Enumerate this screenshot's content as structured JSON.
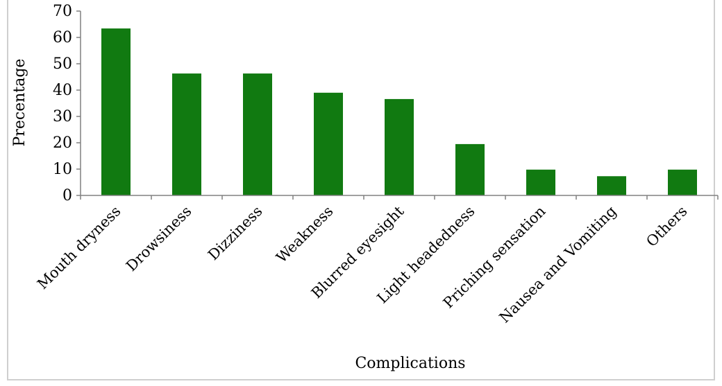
{
  "chart_data": {
    "type": "bar",
    "categories": [
      "Mouth dryness",
      "Drowsiness",
      "Dizziness",
      "Weakness",
      "Blurred eyesight",
      "Light headedness",
      "Priching sensation",
      "Nausea and Vomiting",
      "Others"
    ],
    "values": [
      63.4,
      46.3,
      46.3,
      39.0,
      36.6,
      19.5,
      9.8,
      7.3,
      9.8
    ],
    "xlabel": "Complications",
    "ylabel": "Precentage",
    "ylim": [
      0,
      70
    ],
    "yticks": [
      0,
      10,
      20,
      30,
      40,
      50,
      60,
      70
    ],
    "grid": false,
    "legend": "none",
    "bar_color": "#117a11"
  }
}
